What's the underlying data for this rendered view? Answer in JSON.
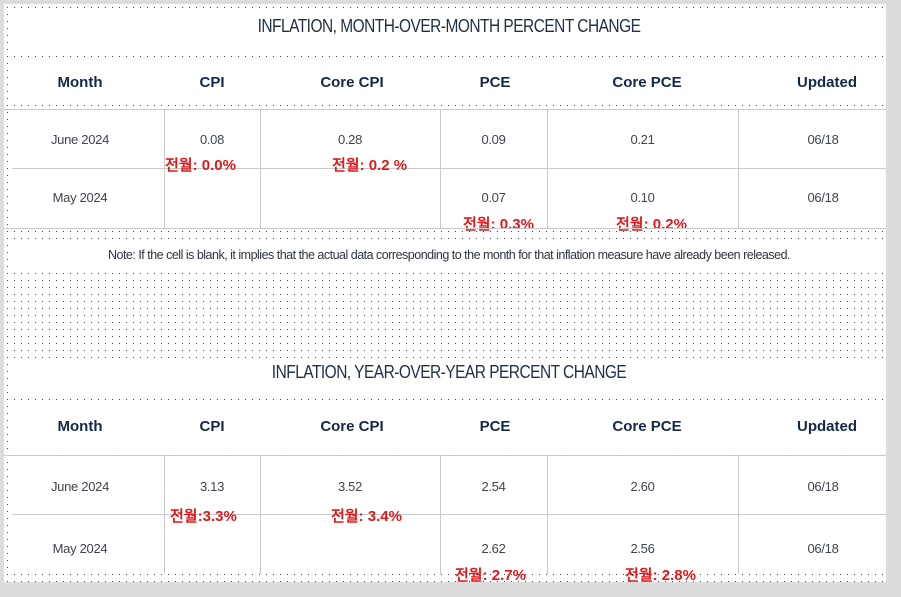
{
  "mom": {
    "title": "INFLATION, MONTH-OVER-MONTH PERCENT CHANGE",
    "headers": [
      "Month",
      "CPI",
      "Core CPI",
      "PCE",
      "Core PCE",
      "Updated"
    ],
    "rows": [
      {
        "month": "June 2024",
        "cpi": "0.08",
        "core_cpi": "0.28",
        "pce": "0.09",
        "core_pce": "0.21",
        "updated": "06/18"
      },
      {
        "month": "May 2024",
        "cpi": "",
        "core_cpi": "",
        "pce": "0.07",
        "core_pce": "0.10",
        "updated": "06/18"
      }
    ],
    "annotations": {
      "cpi": "전월: 0.0%",
      "core_cpi": "전월: 0.2 %",
      "pce": "전월: 0.3%",
      "core_pce": "전월: 0.2%"
    },
    "note": "Note: If the cell is blank, it implies that the actual data corresponding to the month for that inflation measure have already been released."
  },
  "yoy": {
    "title": "INFLATION, YEAR-OVER-YEAR PERCENT CHANGE",
    "headers": [
      "Month",
      "CPI",
      "Core CPI",
      "PCE",
      "Core PCE",
      "Updated"
    ],
    "rows": [
      {
        "month": "June 2024",
        "cpi": "3.13",
        "core_cpi": "3.52",
        "pce": "2.54",
        "core_pce": "2.60",
        "updated": "06/18"
      },
      {
        "month": "May 2024",
        "cpi": "",
        "core_cpi": "",
        "pce": "2.62",
        "core_pce": "2.56",
        "updated": "06/18"
      }
    ],
    "annotations": {
      "cpi": "전월:3.3%",
      "core_cpi": "전월: 3.4%",
      "pce": "전월: 2.7%",
      "core_pce": "전월: 2.8%"
    }
  }
}
